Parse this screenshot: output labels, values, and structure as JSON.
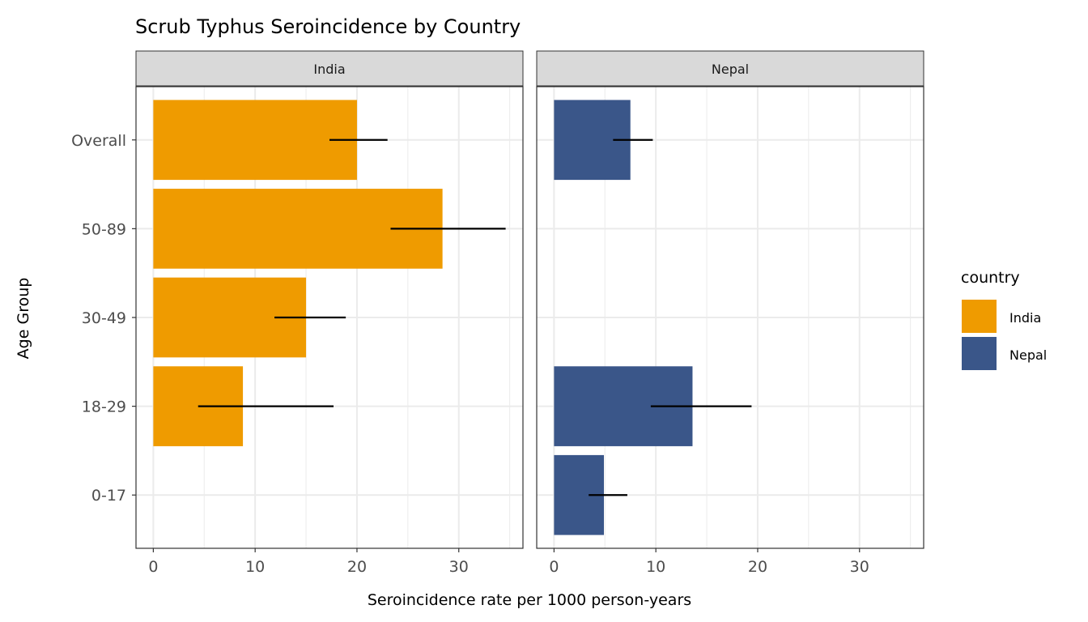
{
  "chart_data": {
    "type": "bar",
    "orientation": "horizontal",
    "title": "Scrub Typhus Seroincidence by Country",
    "xlabel": "Seroincidence rate per 1000 person-years",
    "ylabel": "Age Group",
    "categories": [
      "0-17",
      "18-29",
      "30-49",
      "50-89",
      "Overall"
    ],
    "xlim": [
      -1.7,
      36.3
    ],
    "xticks": [
      0,
      10,
      20,
      30
    ],
    "grid": true,
    "legend": {
      "title": "country",
      "position": "right",
      "entries": [
        "India",
        "Nepal"
      ]
    },
    "facets": [
      {
        "name": "India",
        "color": "#EF9B00",
        "values": [
          null,
          8.8,
          15.0,
          28.4,
          20.0
        ],
        "lower": [
          null,
          4.4,
          11.9,
          23.3,
          17.3
        ],
        "upper": [
          null,
          17.7,
          18.9,
          34.6,
          23.0
        ]
      },
      {
        "name": "Nepal",
        "color": "#3A5689",
        "values": [
          4.9,
          13.6,
          null,
          null,
          7.5
        ],
        "lower": [
          3.4,
          9.5,
          null,
          null,
          5.8
        ],
        "upper": [
          7.2,
          19.4,
          null,
          null,
          9.7
        ]
      }
    ]
  }
}
